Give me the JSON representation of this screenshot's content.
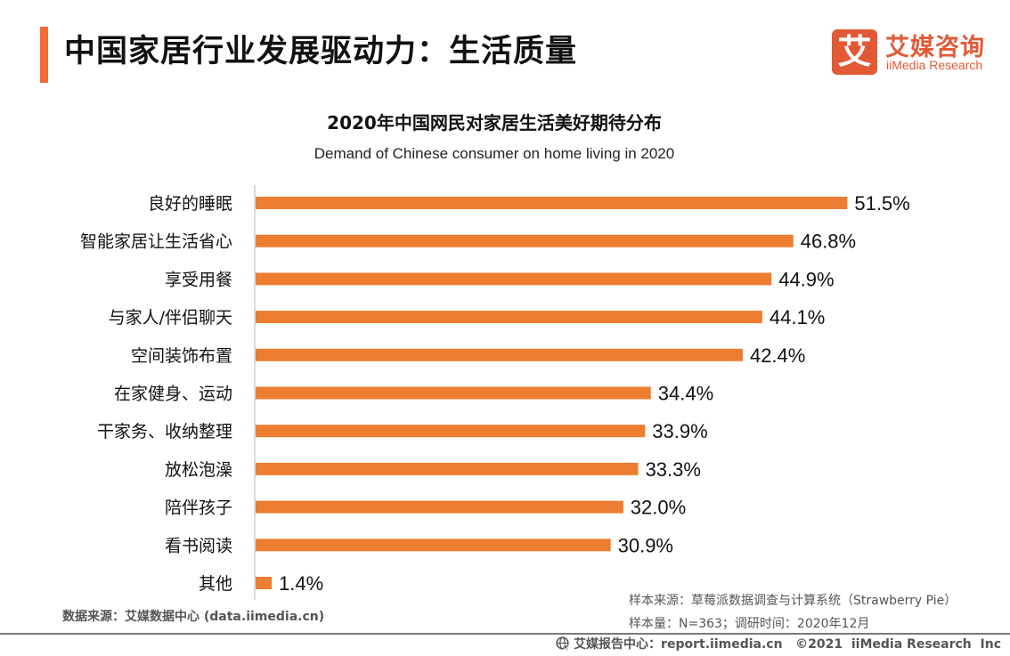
{
  "header": {
    "title": "中国家居行业发展驱动力：生活质量",
    "accent_color": "#f26a3a"
  },
  "logo": {
    "badge_glyph": "艾",
    "name_cn": "艾媒咨询",
    "name_en": "iiMedia Research",
    "brand_color": "#e25a35"
  },
  "chart_data": {
    "type": "bar",
    "orientation": "horizontal",
    "title": "2020年中国网民对家居生活美好期待分布",
    "subtitle": "Demand of Chinese consumer on home living in 2020",
    "xlabel": "",
    "ylabel": "",
    "unit": "%",
    "bar_color": "#ed7d31",
    "grid": false,
    "legend": "none",
    "categories": [
      "良好的睡眠",
      "智能家居让生活省心",
      "享受用餐",
      "与家人/伴侣聊天",
      "空间装饰布置",
      "在家健身、运动",
      "干家务、收纳整理",
      "放松泡澡",
      "陪伴孩子",
      "看书阅读",
      "其他"
    ],
    "values": [
      51.5,
      46.8,
      44.9,
      44.1,
      42.4,
      34.4,
      33.9,
      33.3,
      32.0,
      30.9,
      1.4
    ],
    "value_labels": [
      "51.5%",
      "46.8%",
      "44.9%",
      "44.1%",
      "42.4%",
      "34.4%",
      "33.9%",
      "33.3%",
      "32.0%",
      "30.9%",
      "1.4%"
    ]
  },
  "footnotes": {
    "data_source": "数据来源：艾媒数据中心 (data.iimedia.cn)",
    "sample_source": "样本来源：草莓派数据调查与计算系统（Strawberry Pie）",
    "sample_size": "样本量：N=363；调研时间：2020年12月"
  },
  "footer": {
    "text": "艾媒报告中心：report.iimedia.cn   ©2021  iiMedia Research  Inc",
    "icon": "globe-cursor-icon"
  }
}
